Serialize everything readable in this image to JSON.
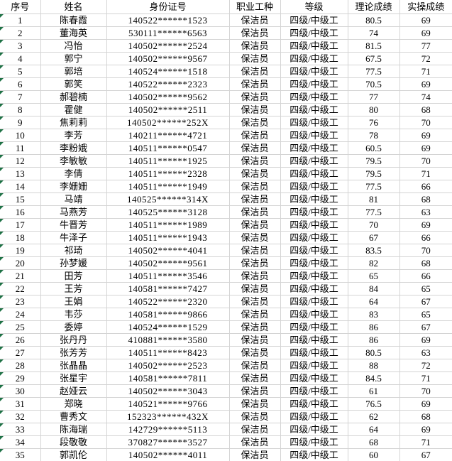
{
  "colors": {
    "gridline": "#d4d4d4",
    "error_indicator": "#1e7145",
    "background": "#ffffff",
    "text": "#000000"
  },
  "table": {
    "columns": [
      {
        "key": "index",
        "label": "序号"
      },
      {
        "key": "name",
        "label": "姓名"
      },
      {
        "key": "id",
        "label": "身份证号"
      },
      {
        "key": "job",
        "label": "职业工种"
      },
      {
        "key": "level",
        "label": "等级"
      },
      {
        "key": "theory",
        "label": "理论成绩"
      },
      {
        "key": "practical",
        "label": "实操成绩"
      }
    ],
    "rows": [
      {
        "index": "1",
        "name": "陈春霞",
        "id": "140522******1523",
        "job": "保洁员",
        "level": "四级/中级工",
        "theory": "80.5",
        "practical": "69"
      },
      {
        "index": "2",
        "name": "董海英",
        "id": "530111******6563",
        "job": "保洁员",
        "level": "四级/中级工",
        "theory": "74",
        "practical": "69"
      },
      {
        "index": "3",
        "name": "冯怡",
        "id": "140502******2524",
        "job": "保洁员",
        "level": "四级/中级工",
        "theory": "81.5",
        "practical": "77"
      },
      {
        "index": "4",
        "name": "郭宁",
        "id": "140502******9567",
        "job": "保洁员",
        "level": "四级/中级工",
        "theory": "67.5",
        "practical": "72"
      },
      {
        "index": "5",
        "name": "郭培",
        "id": "140524******1518",
        "job": "保洁员",
        "level": "四级/中级工",
        "theory": "77.5",
        "practical": "71"
      },
      {
        "index": "6",
        "name": "郭笑",
        "id": "140522******2323",
        "job": "保洁员",
        "level": "四级/中级工",
        "theory": "70.5",
        "practical": "69"
      },
      {
        "index": "7",
        "name": "郝碧楠",
        "id": "140502******9562",
        "job": "保洁员",
        "level": "四级/中级工",
        "theory": "77",
        "practical": "74"
      },
      {
        "index": "8",
        "name": "霍健",
        "id": "140502******2511",
        "job": "保洁员",
        "level": "四级/中级工",
        "theory": "80",
        "practical": "68"
      },
      {
        "index": "9",
        "name": "焦莉莉",
        "id": "140502******252X",
        "job": "保洁员",
        "level": "四级/中级工",
        "theory": "76",
        "practical": "70"
      },
      {
        "index": "10",
        "name": "李芳",
        "id": "140211******4721",
        "job": "保洁员",
        "level": "四级/中级工",
        "theory": "78",
        "practical": "69"
      },
      {
        "index": "11",
        "name": "李粉娥",
        "id": "140511******0547",
        "job": "保洁员",
        "level": "四级/中级工",
        "theory": "60.5",
        "practical": "69"
      },
      {
        "index": "12",
        "name": "李敏敏",
        "id": "140511******1925",
        "job": "保洁员",
        "level": "四级/中级工",
        "theory": "79.5",
        "practical": "70"
      },
      {
        "index": "13",
        "name": "李倩",
        "id": "140511******2328",
        "job": "保洁员",
        "level": "四级/中级工",
        "theory": "79.5",
        "practical": "71"
      },
      {
        "index": "14",
        "name": "李姗姗",
        "id": "140511******1949",
        "job": "保洁员",
        "level": "四级/中级工",
        "theory": "77.5",
        "practical": "66"
      },
      {
        "index": "15",
        "name": "马靖",
        "id": "140525******314X",
        "job": "保洁员",
        "level": "四级/中级工",
        "theory": "81",
        "practical": "68"
      },
      {
        "index": "16",
        "name": "马燕芳",
        "id": "140525******3128",
        "job": "保洁员",
        "level": "四级/中级工",
        "theory": "77.5",
        "practical": "63"
      },
      {
        "index": "17",
        "name": "牛晋芳",
        "id": "140511******1989",
        "job": "保洁员",
        "level": "四级/中级工",
        "theory": "70",
        "practical": "69"
      },
      {
        "index": "18",
        "name": "牛泽子",
        "id": "140511******1943",
        "job": "保洁员",
        "level": "四级/中级工",
        "theory": "67",
        "practical": "66"
      },
      {
        "index": "19",
        "name": "祁琦",
        "id": "140502******4041",
        "job": "保洁员",
        "level": "四级/中级工",
        "theory": "83.5",
        "practical": "70"
      },
      {
        "index": "20",
        "name": "孙梦媛",
        "id": "140502******9561",
        "job": "保洁员",
        "level": "四级/中级工",
        "theory": "82",
        "practical": "68"
      },
      {
        "index": "21",
        "name": "田芳",
        "id": "140511******3546",
        "job": "保洁员",
        "level": "四级/中级工",
        "theory": "65",
        "practical": "66"
      },
      {
        "index": "22",
        "name": "王芳",
        "id": "140581******7427",
        "job": "保洁员",
        "level": "四级/中级工",
        "theory": "84",
        "practical": "65"
      },
      {
        "index": "23",
        "name": "王娟",
        "id": "140522******2320",
        "job": "保洁员",
        "level": "四级/中级工",
        "theory": "64",
        "practical": "67"
      },
      {
        "index": "24",
        "name": "韦莎",
        "id": "140581******9866",
        "job": "保洁员",
        "level": "四级/中级工",
        "theory": "83",
        "practical": "65"
      },
      {
        "index": "25",
        "name": "委婷",
        "id": "140524******1529",
        "job": "保洁员",
        "level": "四级/中级工",
        "theory": "86",
        "practical": "67"
      },
      {
        "index": "26",
        "name": "张丹丹",
        "id": "410881******3580",
        "job": "保洁员",
        "level": "四级/中级工",
        "theory": "86",
        "practical": "69"
      },
      {
        "index": "27",
        "name": "张芳芳",
        "id": "140511******8423",
        "job": "保洁员",
        "level": "四级/中级工",
        "theory": "80.5",
        "practical": "63"
      },
      {
        "index": "28",
        "name": "张晶晶",
        "id": "140502******2523",
        "job": "保洁员",
        "level": "四级/中级工",
        "theory": "88",
        "practical": "72"
      },
      {
        "index": "29",
        "name": "张星宇",
        "id": "140581******7811",
        "job": "保洁员",
        "level": "四级/中级工",
        "theory": "84.5",
        "practical": "71"
      },
      {
        "index": "30",
        "name": "赵娅云",
        "id": "140502******3043",
        "job": "保洁员",
        "level": "四级/中级工",
        "theory": "61",
        "practical": "70"
      },
      {
        "index": "31",
        "name": "郑晓",
        "id": "140521******9766",
        "job": "保洁员",
        "level": "四级/中级工",
        "theory": "76.5",
        "practical": "69"
      },
      {
        "index": "32",
        "name": "曹秀文",
        "id": "152323******432X",
        "job": "保洁员",
        "level": "四级/中级工",
        "theory": "62",
        "practical": "68"
      },
      {
        "index": "33",
        "name": "陈海瑞",
        "id": "142729******5113",
        "job": "保洁员",
        "level": "四级/中级工",
        "theory": "64",
        "practical": "69"
      },
      {
        "index": "34",
        "name": "段敬敬",
        "id": "370827******3527",
        "job": "保洁员",
        "level": "四级/中级工",
        "theory": "68",
        "practical": "71"
      },
      {
        "index": "35",
        "name": "郭凯伦",
        "id": "140502******4011",
        "job": "保洁员",
        "level": "四级/中级工",
        "theory": "60",
        "practical": "67"
      }
    ]
  }
}
